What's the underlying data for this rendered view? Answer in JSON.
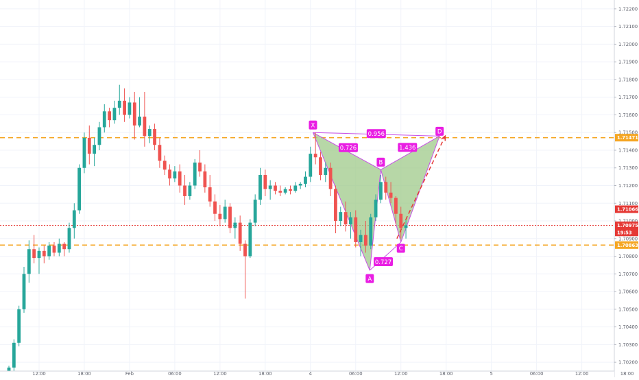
{
  "chart_data": {
    "type": "candlestick",
    "title": "",
    "price_axis": {
      "min": 1.7015,
      "max": 1.7225,
      "ticks": [
        "1.72200",
        "1.72100",
        "1.72000",
        "1.71900",
        "1.71800",
        "1.71700",
        "1.71600",
        "1.71500",
        "1.71400",
        "1.71300",
        "1.71200",
        "1.71100",
        "1.71000",
        "1.70900",
        "1.70800",
        "1.70700",
        "1.70600",
        "1.70500",
        "1.70400",
        "1.70300",
        "1.70200"
      ]
    },
    "time_axis": {
      "labels": [
        {
          "text": "12:00",
          "i": 6
        },
        {
          "text": "18:00",
          "i": 15
        },
        {
          "text": "Feb",
          "i": 24
        },
        {
          "text": "06:00",
          "i": 33
        },
        {
          "text": "12:00",
          "i": 42
        },
        {
          "text": "18:00",
          "i": 51
        },
        {
          "text": "4",
          "i": 60
        },
        {
          "text": "06:00",
          "i": 69
        },
        {
          "text": "12:00",
          "i": 78
        },
        {
          "text": "18:00",
          "i": 87
        },
        {
          "text": "5",
          "i": 96
        },
        {
          "text": "06:00",
          "i": 105
        },
        {
          "text": "12:00",
          "i": 114
        },
        {
          "text": "18:00",
          "i": 123
        }
      ]
    },
    "horizontal_lines": [
      {
        "price": 1.71471,
        "label": "1.71471",
        "color": "#f5a623",
        "style": "dashed"
      },
      {
        "price": 1.70863,
        "label": "1.70863",
        "color": "#f5a623",
        "style": "dashed"
      },
      {
        "price": 1.70975,
        "label": "1.70975",
        "color": "#e53935",
        "style": "dotted"
      }
    ],
    "price_labels": [
      {
        "price": 1.71066,
        "text": "1.71066",
        "color": "#e53935"
      },
      {
        "price": 1.70975,
        "text": "1.70975",
        "color": "#e53935"
      },
      {
        "price": 1.70935,
        "text": "19:53",
        "color": "#e53935"
      }
    ],
    "candles": [
      [
        1.7013,
        1.7018,
        1.7011,
        1.7017
      ],
      [
        1.7017,
        1.7033,
        1.7015,
        1.7031
      ],
      [
        1.7031,
        1.7052,
        1.7029,
        1.705
      ],
      [
        1.705,
        1.7074,
        1.7048,
        1.707
      ],
      [
        1.707,
        1.7089,
        1.7065,
        1.7084
      ],
      [
        1.7084,
        1.7092,
        1.7076,
        1.7079
      ],
      [
        1.7079,
        1.7085,
        1.707,
        1.7083
      ],
      [
        1.7083,
        1.7086,
        1.7076,
        1.708
      ],
      [
        1.708,
        1.7088,
        1.7078,
        1.7086
      ],
      [
        1.7086,
        1.7088,
        1.708,
        1.7082
      ],
      [
        1.7082,
        1.709,
        1.708,
        1.7087
      ],
      [
        1.7087,
        1.7088,
        1.708,
        1.7084
      ],
      [
        1.7084,
        1.7099,
        1.7082,
        1.7096
      ],
      [
        1.7096,
        1.711,
        1.709,
        1.7106
      ],
      [
        1.7106,
        1.7132,
        1.7104,
        1.713
      ],
      [
        1.713,
        1.715,
        1.7127,
        1.7147
      ],
      [
        1.7147,
        1.7154,
        1.7132,
        1.7138
      ],
      [
        1.7138,
        1.7147,
        1.7131,
        1.7143
      ],
      [
        1.7143,
        1.7156,
        1.714,
        1.7153
      ],
      [
        1.7153,
        1.7166,
        1.715,
        1.7162
      ],
      [
        1.7162,
        1.7164,
        1.7153,
        1.7157
      ],
      [
        1.7157,
        1.7168,
        1.7155,
        1.7164
      ],
      [
        1.7164,
        1.7177,
        1.716,
        1.7168
      ],
      [
        1.7168,
        1.7175,
        1.7156,
        1.716
      ],
      [
        1.716,
        1.717,
        1.7158,
        1.7167
      ],
      [
        1.7167,
        1.7173,
        1.7146,
        1.7154
      ],
      [
        1.7154,
        1.717,
        1.7153,
        1.7159
      ],
      [
        1.7159,
        1.7173,
        1.7142,
        1.7148
      ],
      [
        1.7148,
        1.7154,
        1.7144,
        1.7152
      ],
      [
        1.7152,
        1.7155,
        1.714,
        1.7143
      ],
      [
        1.7143,
        1.7147,
        1.713,
        1.7134
      ],
      [
        1.7134,
        1.7137,
        1.7126,
        1.7129
      ],
      [
        1.7129,
        1.7132,
        1.712,
        1.7124
      ],
      [
        1.7124,
        1.7131,
        1.7122,
        1.7128
      ],
      [
        1.7128,
        1.7132,
        1.7116,
        1.712
      ],
      [
        1.712,
        1.7126,
        1.7109,
        1.7114
      ],
      [
        1.7114,
        1.7122,
        1.7112,
        1.712
      ],
      [
        1.712,
        1.7135,
        1.7118,
        1.7133
      ],
      [
        1.7133,
        1.714,
        1.7125,
        1.7128
      ],
      [
        1.7128,
        1.7132,
        1.7116,
        1.7119
      ],
      [
        1.7119,
        1.7126,
        1.7108,
        1.7111
      ],
      [
        1.7111,
        1.7115,
        1.71,
        1.7104
      ],
      [
        1.7104,
        1.7109,
        1.7097,
        1.7101
      ],
      [
        1.7101,
        1.7112,
        1.7099,
        1.7108
      ],
      [
        1.7108,
        1.711,
        1.7093,
        1.7096
      ],
      [
        1.7096,
        1.7102,
        1.709,
        1.7099
      ],
      [
        1.7099,
        1.7103,
        1.7083,
        1.7087
      ],
      [
        1.7087,
        1.7089,
        1.7056,
        1.708
      ],
      [
        1.708,
        1.7101,
        1.7079,
        1.7099
      ],
      [
        1.7099,
        1.7115,
        1.7097,
        1.7112
      ],
      [
        1.7112,
        1.713,
        1.7109,
        1.7126
      ],
      [
        1.7126,
        1.7129,
        1.7114,
        1.7118
      ],
      [
        1.7118,
        1.7123,
        1.7112,
        1.712
      ],
      [
        1.712,
        1.7122,
        1.7115,
        1.7117
      ],
      [
        1.7117,
        1.712,
        1.7114,
        1.7116
      ],
      [
        1.7116,
        1.7119,
        1.7115,
        1.7118
      ],
      [
        1.7118,
        1.712,
        1.7115,
        1.7117
      ],
      [
        1.7117,
        1.7122,
        1.7116,
        1.712
      ],
      [
        1.712,
        1.7122,
        1.7118,
        1.7121
      ],
      [
        1.7121,
        1.7128,
        1.7119,
        1.7125
      ],
      [
        1.7125,
        1.7142,
        1.7122,
        1.7138
      ],
      [
        1.7138,
        1.715,
        1.7132,
        1.7136
      ],
      [
        1.7136,
        1.7139,
        1.7123,
        1.7126
      ],
      [
        1.7126,
        1.7133,
        1.7122,
        1.713
      ],
      [
        1.713,
        1.7133,
        1.7114,
        1.7118
      ],
      [
        1.7118,
        1.712,
        1.7093,
        1.71
      ],
      [
        1.71,
        1.7108,
        1.7097,
        1.7105
      ],
      [
        1.7105,
        1.7111,
        1.7094,
        1.7098
      ],
      [
        1.7098,
        1.7105,
        1.709,
        1.7102
      ],
      [
        1.7102,
        1.7106,
        1.7085,
        1.7088
      ],
      [
        1.7088,
        1.7095,
        1.708,
        1.7092
      ],
      [
        1.7092,
        1.71,
        1.7082,
        1.7086
      ],
      [
        1.7086,
        1.7104,
        1.7084,
        1.7102
      ],
      [
        1.7102,
        1.7115,
        1.71,
        1.7112
      ],
      [
        1.7112,
        1.7126,
        1.711,
        1.7122
      ],
      [
        1.7122,
        1.7125,
        1.7112,
        1.7116
      ],
      [
        1.7116,
        1.7122,
        1.711,
        1.7113
      ],
      [
        1.7113,
        1.7114,
        1.7098,
        1.7104
      ],
      [
        1.7104,
        1.7108,
        1.709,
        1.7096
      ],
      [
        1.7096,
        1.7101,
        1.709,
        1.70975
      ]
    ],
    "harmonic_pattern": {
      "points": [
        {
          "name": "X",
          "i": 60.5,
          "price": 1.715
        },
        {
          "name": "A",
          "i": 71.8,
          "price": 1.7072
        },
        {
          "name": "B",
          "i": 74.0,
          "price": 1.7129
        },
        {
          "name": "C",
          "i": 78.0,
          "price": 1.7088
        },
        {
          "name": "D",
          "i": 85.7,
          "price": 1.7148
        }
      ],
      "ratios": [
        {
          "text": "0.956"
        },
        {
          "text": "0.726"
        },
        {
          "text": "1.436"
        },
        {
          "text": "0.727"
        }
      ],
      "fill_color": "#9fc98a",
      "line_color": "#c850e6",
      "label_color": "#e91ee3"
    },
    "projection": {
      "from_i": 77.2,
      "from_price": 1.709,
      "to_i": 86.8,
      "to_price": 1.7148,
      "color": "#e53935"
    }
  },
  "colors": {
    "up": "#26a69a",
    "down": "#ef5350",
    "axis_text": "#5d606b",
    "grid": "#f0f3fa"
  }
}
